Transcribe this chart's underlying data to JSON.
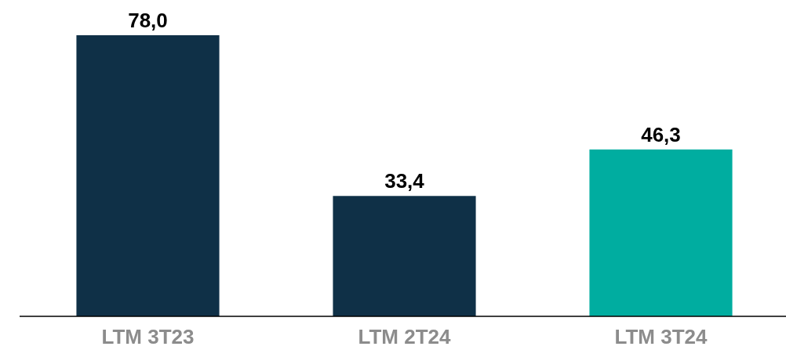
{
  "chart_data": {
    "type": "bar",
    "categories": [
      "LTM 3T23",
      "LTM 2T24",
      "LTM 3T24"
    ],
    "values": [
      78.0,
      33.4,
      46.3
    ],
    "colors": [
      "#0f3047",
      "#0f3047",
      "#00ada0"
    ],
    "value_labels": [
      "78,0",
      "33,4",
      "46,3"
    ]
  }
}
